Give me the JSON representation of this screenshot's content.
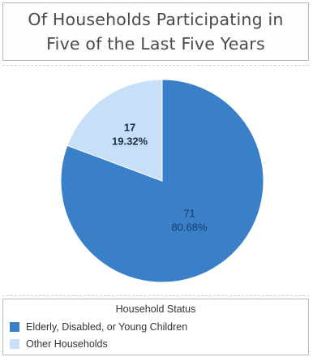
{
  "title": "Of Households Participating in Five of the Last Five Years",
  "chart_data": {
    "type": "pie",
    "title": "Of Households Participating in Five of the Last Five Years",
    "legend_title": "Household Status",
    "legend_placement": "bottom",
    "slices": [
      {
        "name": "Elderly, Disabled, or Young Children",
        "value": 71,
        "percent_label": "80.68%",
        "color": "#3a80c9",
        "label_color": "#1a3c66"
      },
      {
        "name": "Other Households",
        "value": 17,
        "percent_label": "19.32%",
        "color": "#c6e0f7",
        "label_color": "#1e2a40"
      }
    ]
  }
}
